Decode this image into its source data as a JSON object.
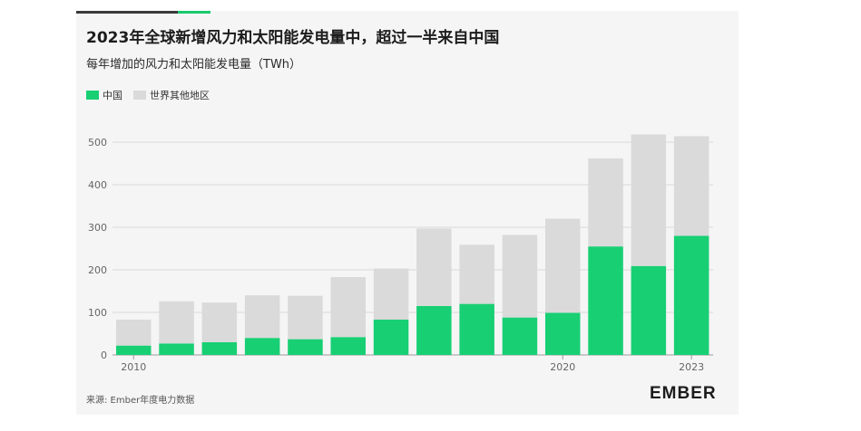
{
  "header": {
    "title": "2023年全球新增风力和太阳能发电量中，超过一半来自中国",
    "subtitle": "每年增加的风力和太阳能发电量（TWh）"
  },
  "legend": [
    {
      "label": "中国",
      "color": "#18cf74"
    },
    {
      "label": "世界其他地区",
      "color": "#dadada"
    }
  ],
  "chart_data": {
    "type": "bar",
    "stacked": true,
    "title": "2023年全球新增风力和太阳能发电量中，超过一半来自中国",
    "subtitle": "每年增加的风力和太阳能发电量（TWh）",
    "categories": [
      "2010",
      "2011",
      "2012",
      "2013",
      "2014",
      "2015",
      "2016",
      "2017",
      "2018",
      "2019",
      "2020",
      "2021",
      "2022",
      "2023"
    ],
    "x_tick_labels": [
      {
        "category": "2010",
        "label": "2010"
      },
      {
        "category": "2020",
        "label": "2020"
      },
      {
        "category": "2023",
        "label": "2023"
      }
    ],
    "series": [
      {
        "name": "中国",
        "color": "#18cf74",
        "values": [
          22,
          27,
          30,
          40,
          37,
          42,
          83,
          115,
          120,
          88,
          99,
          255,
          209,
          280
        ]
      },
      {
        "name": "世界其他地区",
        "color": "#dadada",
        "values": [
          61,
          99,
          93,
          100,
          102,
          141,
          120,
          182,
          139,
          194,
          221,
          207,
          309,
          234
        ]
      }
    ],
    "y_ticks": [
      0,
      100,
      200,
      300,
      400,
      500
    ],
    "ylim": [
      0,
      520
    ],
    "xlabel": "",
    "ylabel": "",
    "grid": true,
    "legend_position": "top-left"
  },
  "footer": {
    "source": "来源: Ember年度电力数据",
    "logo_text": "EMBER"
  }
}
